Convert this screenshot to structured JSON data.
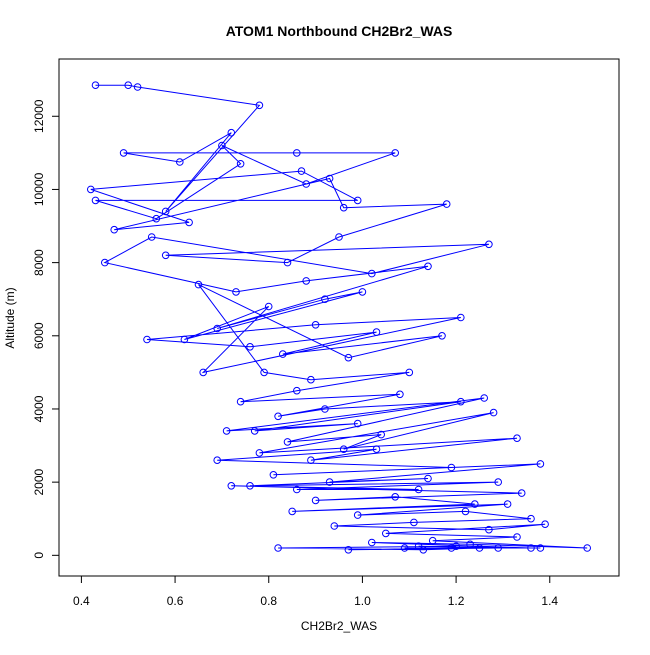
{
  "chart_data": {
    "type": "line",
    "title": "ATOM1 Northbound CH2Br2_WAS",
    "xlabel": "CH2Br2_WAS",
    "ylabel": "Altitude (m)",
    "xlim": [
      0.4,
      1.5
    ],
    "ylim": [
      0,
      13000
    ],
    "xticks": [
      0.4,
      0.6,
      0.8,
      1.0,
      1.2,
      1.4
    ],
    "xtick_labels": [
      "0.4",
      "0.6",
      "0.8",
      "1.0",
      "1.2",
      "1.4"
    ],
    "yticks": [
      0,
      2000,
      4000,
      6000,
      8000,
      10000,
      12000
    ],
    "ytick_labels": [
      "0",
      "2000",
      "4000",
      "6000",
      "8000",
      "10000",
      "12000"
    ],
    "color": "#0000ff",
    "marker": "open-circle",
    "grid": false,
    "series": [
      {
        "x": [
          0.43,
          0.5,
          0.52,
          0.78,
          0.58,
          0.72,
          0.61,
          0.49,
          0.86,
          1.07,
          0.88,
          0.7,
          0.74,
          0.56,
          0.43,
          0.99,
          0.87,
          0.42,
          0.63,
          0.47,
          0.93,
          0.96,
          1.18,
          0.95,
          0.84,
          0.58,
          1.27,
          1.02,
          0.55,
          0.45,
          0.73,
          0.88,
          1.14,
          0.69,
          0.92,
          1.0,
          0.62,
          0.8,
          0.66,
          1.21,
          0.9,
          0.54,
          0.76,
          1.03,
          0.83,
          1.17,
          0.97,
          0.65,
          0.79,
          0.89,
          1.1,
          0.86,
          0.74,
          1.08,
          0.82,
          0.92,
          1.21,
          0.77,
          0.99,
          0.71,
          1.26,
          0.84,
          1.04,
          0.96,
          1.28,
          0.78,
          1.33,
          0.89,
          1.03,
          0.69,
          1.19,
          0.81,
          1.38,
          0.93,
          1.14,
          0.76,
          1.29,
          0.86,
          1.12,
          0.72,
          1.34,
          0.9,
          1.07,
          1.24,
          0.85,
          1.31,
          0.99,
          1.22,
          1.36,
          1.11,
          0.94,
          1.27,
          1.39,
          1.05,
          1.33,
          1.15,
          1.48,
          1.23,
          1.02,
          1.36,
          1.12,
          1.29,
          0.97,
          1.19,
          1.09,
          1.38,
          1.25,
          1.13,
          0.82,
          1.2
        ],
        "y": [
          12850,
          12850,
          12800,
          12300,
          9400,
          11550,
          10750,
          11000,
          11000,
          11000,
          10150,
          11200,
          10700,
          9200,
          9700,
          9700,
          10500,
          10000,
          9100,
          8900,
          10300,
          9500,
          9600,
          8700,
          8000,
          8200,
          8500,
          7700,
          8700,
          8000,
          7200,
          7500,
          7900,
          6200,
          7000,
          7200,
          5900,
          6800,
          5000,
          6500,
          6300,
          5900,
          5700,
          6100,
          5500,
          6000,
          5400,
          7400,
          5000,
          4800,
          5000,
          4500,
          4200,
          4400,
          3800,
          4000,
          4200,
          3400,
          3600,
          3400,
          4300,
          3100,
          3300,
          2900,
          3900,
          2800,
          3200,
          2600,
          2900,
          2600,
          2400,
          2200,
          2500,
          2000,
          2100,
          1900,
          2000,
          1800,
          1800,
          1900,
          1700,
          1500,
          1600,
          1400,
          1200,
          1400,
          1100,
          1200,
          1000,
          900,
          800,
          700,
          850,
          600,
          500,
          400,
          200,
          300,
          350,
          200,
          250,
          200,
          150,
          200,
          200,
          200,
          200,
          150,
          200,
          250
        ]
      }
    ]
  }
}
